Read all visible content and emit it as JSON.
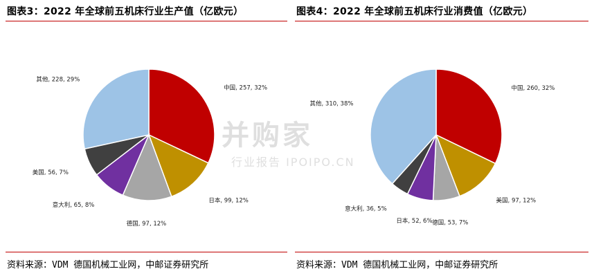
{
  "left": {
    "title": "图表3：2022 年全球前五机床行业生产值（亿欧元）",
    "source": "资料来源：VDM 德国机械工业网，中邮证券研究所"
  },
  "right": {
    "title": "图表4：2022 年全球前五机床行业消费值（亿欧元）",
    "source": "资料来源：VDM 德国机械工业网，中邮证券研究所"
  },
  "watermark": {
    "main": "并购家",
    "sub": "行业报告 IPOIPO.CN"
  },
  "chart_data": [
    {
      "type": "pie",
      "title": "图表3：2022 年全球前五机床行业生产值（亿欧元）",
      "slices": [
        {
          "name": "中国",
          "value": 257,
          "pct": 32,
          "label": "中国, 257, 32%",
          "color": "#c00000"
        },
        {
          "name": "日本",
          "value": 99,
          "pct": 12,
          "label": "日本, 99, 12%",
          "color": "#bf9000"
        },
        {
          "name": "德国",
          "value": 97,
          "pct": 12,
          "label": "德国, 97, 12%",
          "color": "#a6a6a6"
        },
        {
          "name": "意大利",
          "value": 65,
          "pct": 8,
          "label": "意大利, 65, 8%",
          "color": "#7030a0"
        },
        {
          "name": "美国",
          "value": 56,
          "pct": 7,
          "label": "美国, 56, 7%",
          "color": "#404040"
        },
        {
          "name": "其他",
          "value": 228,
          "pct": 29,
          "label": "其他, 228, 29%",
          "color": "#9dc3e6"
        }
      ]
    },
    {
      "type": "pie",
      "title": "图表4：2022 年全球前五机床行业消费值（亿欧元）",
      "slices": [
        {
          "name": "中国",
          "value": 260,
          "pct": 32,
          "label": "中国, 260, 32%",
          "color": "#c00000"
        },
        {
          "name": "美国",
          "value": 97,
          "pct": 12,
          "label": "美国, 97, 12%",
          "color": "#bf9000"
        },
        {
          "name": "德国",
          "value": 53,
          "pct": 7,
          "label": "德国, 53, 7%",
          "color": "#a6a6a6"
        },
        {
          "name": "日本",
          "value": 52,
          "pct": 6,
          "label": "日本, 52, 6%",
          "color": "#7030a0"
        },
        {
          "name": "意大利",
          "value": 36,
          "pct": 5,
          "label": "意大利, 36, 5%",
          "color": "#404040"
        },
        {
          "name": "其他",
          "value": 310,
          "pct": 38,
          "label": "其他, 310, 38%",
          "color": "#9dc3e6"
        }
      ]
    }
  ]
}
